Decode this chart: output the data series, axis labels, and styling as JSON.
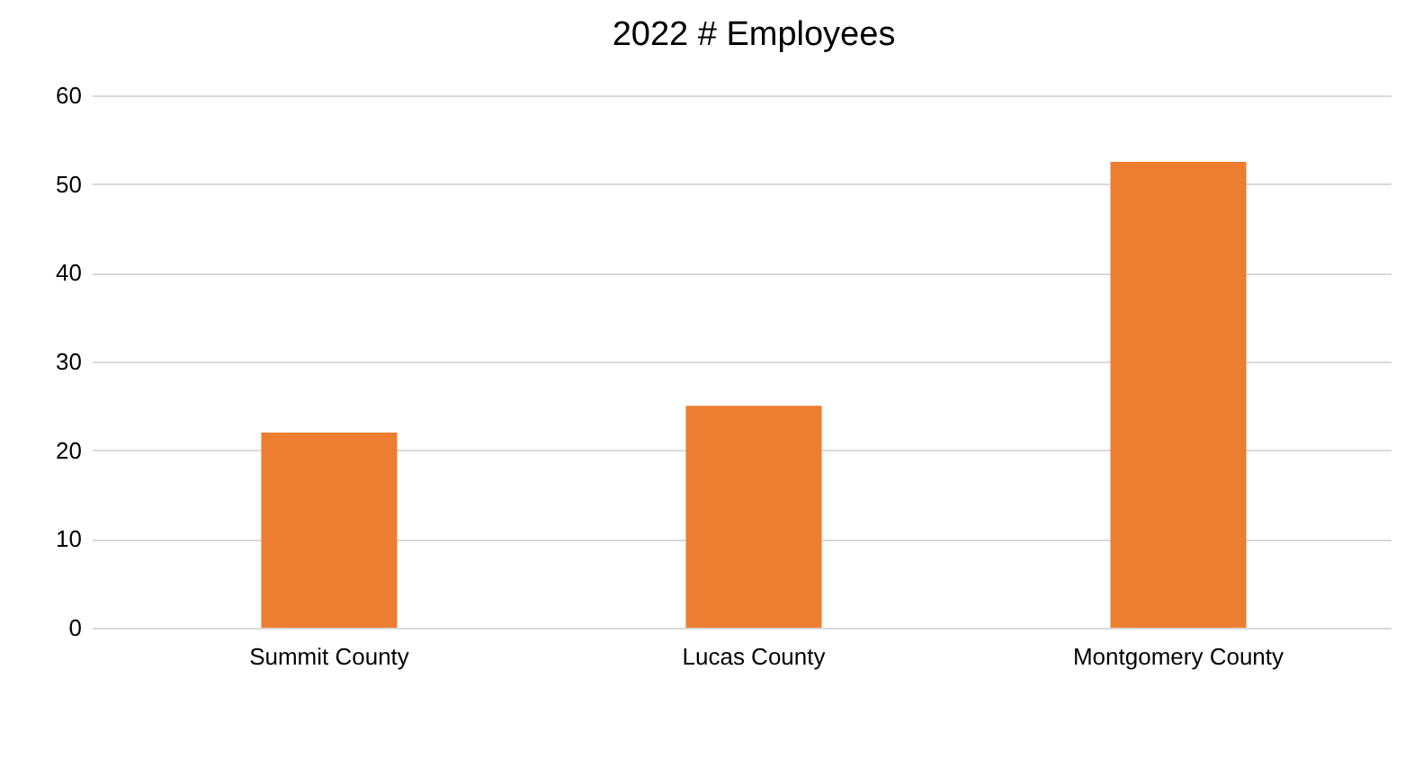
{
  "chart_data": {
    "type": "bar",
    "title": "2022 # Employees",
    "categories": [
      "Summit County",
      "Lucas County",
      "Montgomery County"
    ],
    "values": [
      22,
      25,
      52.5
    ],
    "color": "#ed7d31",
    "ylim": [
      0,
      60
    ],
    "yticks": [
      0,
      10,
      20,
      30,
      40,
      50,
      60
    ],
    "grid": "y"
  }
}
